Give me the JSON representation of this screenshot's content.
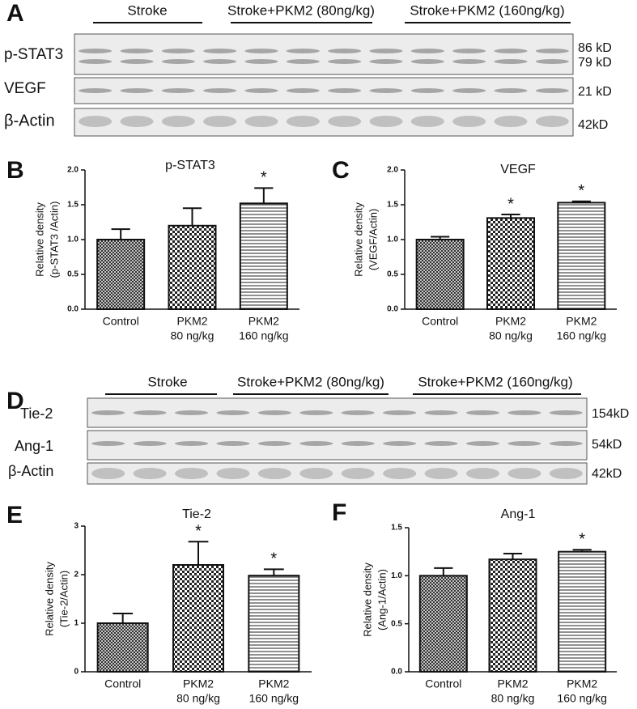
{
  "panels": [
    "A",
    "B",
    "C",
    "D",
    "E",
    "F"
  ],
  "blots": [
    {
      "groups": [
        "Stroke",
        "Stroke+PKM2 (80ng/kg)",
        "Stroke+PKM2 (160ng/kg)"
      ],
      "rows": [
        {
          "label": "p-STAT3",
          "sizes": [
            "86 kD",
            "79 kD"
          ]
        },
        {
          "label": "VEGF",
          "sizes": [
            "21 kD"
          ]
        },
        {
          "label": "β-Actin",
          "sizes": [
            "42kD"
          ]
        }
      ]
    },
    {
      "groups": [
        "Stroke",
        "Stroke+PKM2 (80ng/kg)",
        "Stroke+PKM2 (160ng/kg)"
      ],
      "rows": [
        {
          "label": "Tie-2",
          "sizes": [
            "154kD"
          ]
        },
        {
          "label": "Ang-1",
          "sizes": [
            "54kD"
          ]
        },
        {
          "label": "β-Actin",
          "sizes": [
            "42kD"
          ]
        }
      ]
    }
  ],
  "chart_data": [
    {
      "type": "bar",
      "title": "p-STAT3",
      "y_label": [
        "Relative density",
        "(p-STAT3 /Actin)"
      ],
      "categories": [
        [
          "Control"
        ],
        [
          "PKM2",
          "80 ng/kg"
        ],
        [
          "PKM2",
          "160 ng/kg"
        ]
      ],
      "values": [
        1.0,
        1.2,
        1.52
      ],
      "errors": [
        0.15,
        0.25,
        0.22
      ],
      "significance": [
        null,
        null,
        "*"
      ],
      "ylim": [
        0,
        2
      ],
      "yticks": [
        {
          "value": 0,
          "label": "0.0"
        },
        0.5,
        {
          "value": 1,
          "label": "1.0"
        },
        1.5,
        {
          "value": 2,
          "label": "2.0"
        }
      ]
    },
    {
      "type": "bar",
      "title": "VEGF",
      "y_label": [
        "Relative density",
        "(VEGF/Actin)"
      ],
      "categories": [
        [
          "Control"
        ],
        [
          "PKM2",
          "80 ng/kg"
        ],
        [
          "PKM2",
          "160 ng/kg"
        ]
      ],
      "values": [
        1.0,
        1.31,
        1.53
      ],
      "errors": [
        0.04,
        0.05,
        0.02
      ],
      "significance": [
        null,
        "*",
        "*"
      ],
      "ylim": [
        0,
        2
      ],
      "yticks": [
        {
          "value": 0,
          "label": "0.0"
        },
        0.5,
        {
          "value": 1,
          "label": "1.0"
        },
        1.5,
        {
          "value": 2,
          "label": "2.0"
        }
      ]
    },
    {
      "type": "bar",
      "title": "Tie-2",
      "y_label": [
        "Relative density",
        "(Tie-2/Actin)"
      ],
      "categories": [
        [
          "Control"
        ],
        [
          "PKM2",
          "80 ng/kg"
        ],
        [
          "PKM2",
          "160 ng/kg"
        ]
      ],
      "values": [
        1.0,
        2.2,
        1.98
      ],
      "errors": [
        0.2,
        0.48,
        0.13
      ],
      "significance": [
        null,
        "*",
        "*"
      ],
      "ylim": [
        0,
        3
      ],
      "yticks": [
        0,
        1,
        2,
        3
      ]
    },
    {
      "type": "bar",
      "title": "Ang-1",
      "y_label": [
        "Relative density",
        "(Ang-1/Actin)"
      ],
      "categories": [
        [
          "Control"
        ],
        [
          "PKM2",
          "80 ng/kg"
        ],
        [
          "PKM2",
          "160 ng/kg"
        ]
      ],
      "values": [
        1.0,
        1.17,
        1.25
      ],
      "errors": [
        0.08,
        0.06,
        0.02
      ],
      "significance": [
        null,
        null,
        "*"
      ],
      "ylim": [
        0,
        1.5
      ],
      "yticks": [
        {
          "value": 0,
          "label": "0.0"
        },
        {
          "value": 0.5,
          "label": "0.5"
        },
        {
          "value": 1,
          "label": "1.0"
        },
        {
          "value": 1.5,
          "label": "1.5"
        }
      ]
    }
  ]
}
